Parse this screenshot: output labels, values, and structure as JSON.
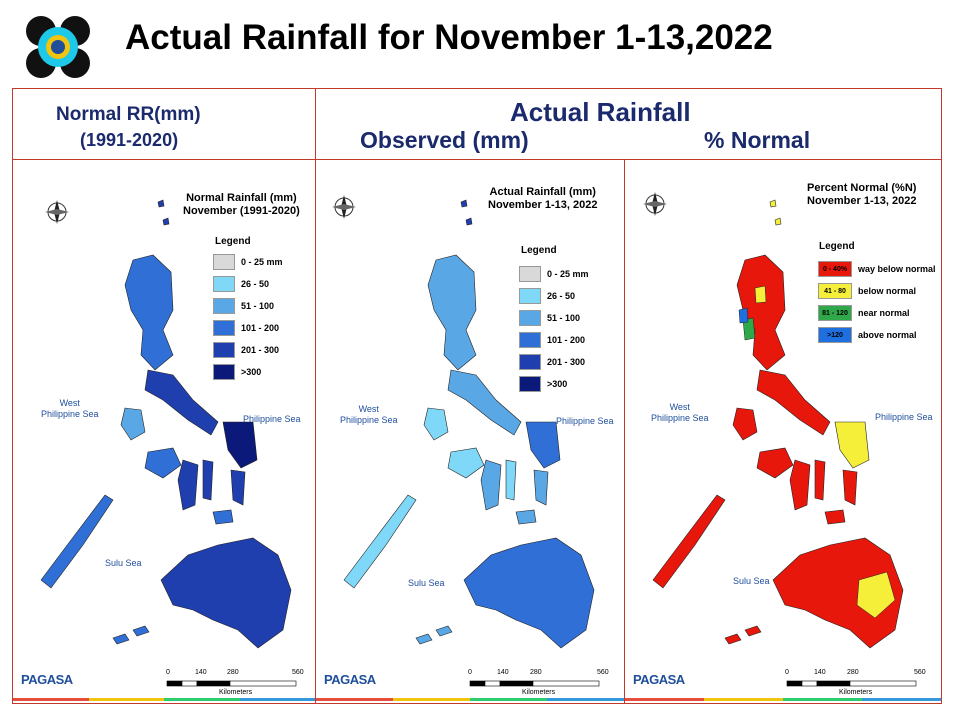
{
  "slide": {
    "title": "Actual Rainfall for November 1-13,2022"
  },
  "headers": {
    "normal_line1": "Normal RR(mm)",
    "normal_line2": "(1991-2020)",
    "actual": "Actual Rainfall",
    "observed": "Observed (mm)",
    "percent": "% Normal"
  },
  "maps": [
    {
      "title_line1": "Normal Rainfall (mm)",
      "title_line2": "November (1991-2020)",
      "legend_title": "Legend",
      "legend": [
        {
          "label": "0 - 25 mm",
          "color": "#d9d9d9"
        },
        {
          "label": "26 - 50",
          "color": "#7fd8f7"
        },
        {
          "label": "51 - 100",
          "color": "#5aa7e6"
        },
        {
          "label": "101 - 200",
          "color": "#2f6fd6"
        },
        {
          "label": "201 - 300",
          "color": "#1f3fae"
        },
        {
          "label": ">300",
          "color": "#0b1a7a"
        }
      ],
      "sea_west": "West\nPhilippine Sea",
      "sea_east": "Philippine Sea",
      "sea_south": "Sulu Sea",
      "scale_ticks": [
        "0",
        "140",
        "280",
        "560"
      ],
      "scale_unit": "Kilometers",
      "brand": "PAGASA"
    },
    {
      "title_line1": "Actual Rainfall (mm)",
      "title_line2": "November 1-13, 2022",
      "legend_title": "Legend",
      "legend": [
        {
          "label": "0 - 25 mm",
          "color": "#d9d9d9"
        },
        {
          "label": "26 - 50",
          "color": "#7fd8f7"
        },
        {
          "label": "51 - 100",
          "color": "#5aa7e6"
        },
        {
          "label": "101 - 200",
          "color": "#2f6fd6"
        },
        {
          "label": "201 - 300",
          "color": "#1f3fae"
        },
        {
          "label": ">300",
          "color": "#0b1a7a"
        }
      ],
      "sea_west": "West\nPhilippine Sea",
      "sea_east": "Philippine Sea",
      "sea_south": "Sulu Sea",
      "scale_ticks": [
        "0",
        "140",
        "280",
        "560"
      ],
      "scale_unit": "Kilometers",
      "brand": "PAGASA"
    },
    {
      "title_line1": "Percent Normal (%N)",
      "title_line2": "November 1-13, 2022",
      "legend_title": "Legend",
      "legend": [
        {
          "swatch": "0 - 40%",
          "label": "way below normal",
          "color": "#e8170c"
        },
        {
          "swatch": "41 - 80",
          "label": "below normal",
          "color": "#f5ef3a"
        },
        {
          "swatch": "81 - 120",
          "label": "near normal",
          "color": "#2fa84a"
        },
        {
          "swatch": ">120",
          "label": "above normal",
          "color": "#1e6fe0"
        }
      ],
      "sea_west": "West\nPhilippine Sea",
      "sea_east": "Philippine Sea",
      "sea_south": "Sulu Sea",
      "scale_ticks": [
        "0",
        "140",
        "280",
        "560"
      ],
      "scale_unit": "Kilometers",
      "brand": "PAGASA"
    }
  ],
  "colors": {
    "frame_border": "#c0392b",
    "header_text": "#1a2a6c",
    "ribbon": [
      "#e74c3c",
      "#f1c40f",
      "#2ecc71",
      "#3498db"
    ]
  }
}
